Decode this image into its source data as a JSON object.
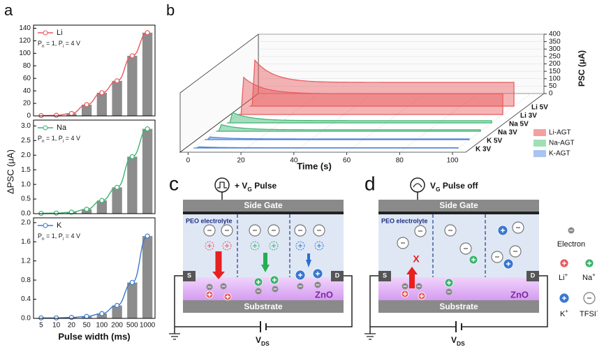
{
  "panel_labels": [
    "a",
    "b",
    "c",
    "d"
  ],
  "chart_data": [
    {
      "type": "bar_line",
      "bar_color": "#8c8c8c",
      "series": [
        {
          "name": "Li",
          "color": "#e8595c",
          "values": [
            0.5,
            1,
            4,
            18,
            37,
            56,
            96,
            133
          ]
        }
      ],
      "annotation": [
        {
          "t": "P"
        },
        {
          "sub": "n"
        },
        {
          "t": " = 1, P"
        },
        {
          "sub": "i"
        },
        {
          "t": " = 4 V"
        }
      ],
      "ylim": [
        0,
        145
      ],
      "yticks": [
        0,
        20,
        40,
        60,
        80,
        100,
        120,
        140
      ]
    },
    {
      "type": "bar_line",
      "bar_color": "#8c8c8c",
      "y_label": "ΔPSC (μA)",
      "series": [
        {
          "name": "Na",
          "color": "#3cb371",
          "values": [
            0.01,
            0.02,
            0.05,
            0.15,
            0.45,
            0.9,
            1.95,
            2.9
          ]
        }
      ],
      "annotation": [
        {
          "t": "P"
        },
        {
          "sub": "n"
        },
        {
          "t": " = 1, P"
        },
        {
          "sub": "i"
        },
        {
          "t": " = 4 V"
        }
      ],
      "ylim": [
        0,
        3.2
      ],
      "yticks": [
        {
          "value": 0,
          "label": "0.0"
        },
        {
          "value": 0.5,
          "label": "0.5"
        },
        {
          "value": 1,
          "label": "1.0"
        },
        {
          "value": 1.5,
          "label": "1.5"
        },
        {
          "value": 2,
          "label": "2.0"
        },
        {
          "value": 2.5,
          "label": "2.5"
        },
        {
          "value": 3,
          "label": "3.0"
        }
      ]
    },
    {
      "type": "bar_line",
      "bar_color": "#8c8c8c",
      "x_label": "Pulse width (ms)",
      "categories": [
        "5",
        "10",
        "20",
        "50",
        "100",
        "200",
        "500",
        "1000"
      ],
      "series": [
        {
          "name": "K",
          "color": "#3a78d0",
          "values": [
            0.01,
            0.01,
            0.02,
            0.04,
            0.1,
            0.27,
            0.75,
            1.72
          ]
        }
      ],
      "annotation": [
        {
          "t": "P"
        },
        {
          "sub": "n"
        },
        {
          "t": " = 1, P"
        },
        {
          "sub": "i"
        },
        {
          "t": " = 4 V"
        }
      ],
      "ylim": [
        0,
        2.1
      ],
      "yticks": [
        {
          "value": 0,
          "label": "0.0"
        },
        {
          "value": 0.4,
          "label": "0.4"
        },
        {
          "value": 0.8,
          "label": "0.8"
        },
        {
          "value": 1.2,
          "label": "1.2"
        },
        {
          "value": 1.6,
          "label": "1.6"
        },
        {
          "value": 2,
          "label": "2.0"
        }
      ]
    },
    {
      "type": "waterfall_3d",
      "x_label": "Time (s)",
      "z_label": "PSC (μA)",
      "xlim": [
        -3,
        105
      ],
      "xticks": [
        0,
        20,
        40,
        60,
        80,
        100
      ],
      "zlim": [
        0,
        400
      ],
      "zticks": [
        0,
        50,
        100,
        150,
        200,
        250,
        300,
        350,
        400
      ],
      "series": [
        {
          "name": "K 3V",
          "color": "#4a80d8",
          "peak": 8,
          "final": 2
        },
        {
          "name": "K 5V",
          "color": "#4a80d8",
          "peak": 18,
          "final": 5
        },
        {
          "name": "Na 3V",
          "color": "#3cb371",
          "peak": 45,
          "final": 10
        },
        {
          "name": "Na 5V",
          "color": "#3cb371",
          "peak": 70,
          "final": 15
        },
        {
          "name": "Li 3V",
          "color": "#e8595c",
          "peak": 250,
          "final": 140
        },
        {
          "name": "Li 5V",
          "color": "#e8595c",
          "peak": 310,
          "final": 160
        }
      ],
      "legend": [
        {
          "name": "Li-AGT",
          "color": "#f4a0a0"
        },
        {
          "name": "Na-AGT",
          "color": "#9ee0b8"
        },
        {
          "name": "K-AGT",
          "color": "#a8c4f0"
        }
      ]
    }
  ],
  "diagram_c": {
    "pulse": [
      {
        "t": "+ V"
      },
      {
        "sub": "G"
      },
      {
        "t": " Pulse"
      }
    ],
    "gate": "Side Gate",
    "electrolyte": "PEO electrolyte",
    "channel": "ZnO",
    "substrate": "Substrate",
    "source": "S",
    "drain": "D",
    "vds": [
      {
        "t": "V"
      },
      {
        "sub": "DS"
      }
    ]
  },
  "diagram_d": {
    "pulse": [
      {
        "t": "V"
      },
      {
        "sub": "G"
      },
      {
        "t": " Pulse off"
      }
    ],
    "gate": "Side Gate",
    "electrolyte": "PEO electrolyte",
    "channel": "ZnO",
    "substrate": "Substrate",
    "source": "S",
    "drain": "D",
    "vds": [
      {
        "t": "V"
      },
      {
        "sub": "DS"
      }
    ],
    "blocked": "X"
  },
  "legend": {
    "electron": "Electron",
    "li": [
      {
        "t": "Li"
      },
      {
        "sup": "+"
      }
    ],
    "na": [
      {
        "t": "Na"
      },
      {
        "sup": "+"
      }
    ],
    "k": [
      {
        "t": "K"
      },
      {
        "sup": "+"
      }
    ],
    "tfsi": [
      {
        "t": "TFSI"
      },
      {
        "sup": "-"
      }
    ]
  }
}
